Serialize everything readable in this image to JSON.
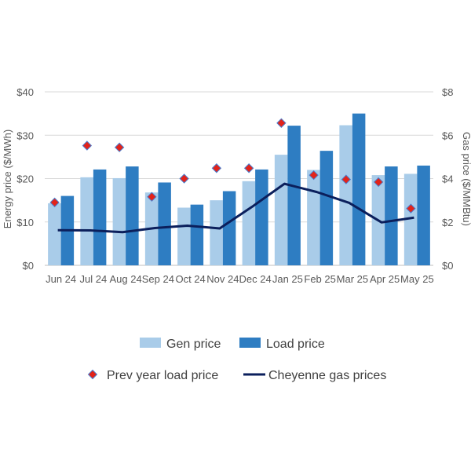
{
  "chart_data": {
    "type": "bar",
    "categories": [
      "Jun 24",
      "Jul 24",
      "Aug 24",
      "Sep 24",
      "Oct 24",
      "Nov 24",
      "Dec 24",
      "Jan 25",
      "Feb 25",
      "Mar 25",
      "Apr 25",
      "May 25"
    ],
    "series": [
      {
        "name": "Gen price",
        "type": "bar",
        "axis": "left",
        "color": "#a9cce9",
        "values": [
          14.3,
          20.3,
          20.1,
          16.8,
          13.3,
          15.0,
          19.4,
          25.5,
          22.0,
          32.3,
          20.8,
          21.1
        ]
      },
      {
        "name": "Load price",
        "type": "bar",
        "axis": "left",
        "color": "#2e7dc2",
        "values": [
          16.0,
          22.1,
          22.8,
          19.1,
          14.0,
          17.1,
          22.1,
          32.2,
          26.4,
          35.0,
          22.8,
          23.0
        ]
      },
      {
        "name": "Prev year load price",
        "type": "scatter",
        "axis": "left",
        "color": "#e2231a",
        "values": [
          14.5,
          27.6,
          27.2,
          15.8,
          20.0,
          22.4,
          22.4,
          32.8,
          20.8,
          19.8,
          19.2,
          13.1
        ]
      },
      {
        "name": "Cheyenne gas prices",
        "type": "line",
        "axis": "right",
        "color": "#0b1f5c",
        "values": [
          1.62,
          1.61,
          1.53,
          1.72,
          1.83,
          1.7,
          2.7,
          3.76,
          3.38,
          2.88,
          1.98,
          2.2
        ]
      }
    ],
    "ylabel": "Energy price ($/MWh)",
    "y2label": "Gas price ($/MMBtu)",
    "ylim": [
      0,
      40
    ],
    "y2lim": [
      0,
      8
    ],
    "yticks": [
      "$0",
      "$10",
      "$20",
      "$30",
      "$40"
    ],
    "y2ticks": [
      "$0",
      "$2",
      "$4",
      "$6",
      "$8"
    ],
    "grid": true,
    "legend_position": "bottom"
  }
}
